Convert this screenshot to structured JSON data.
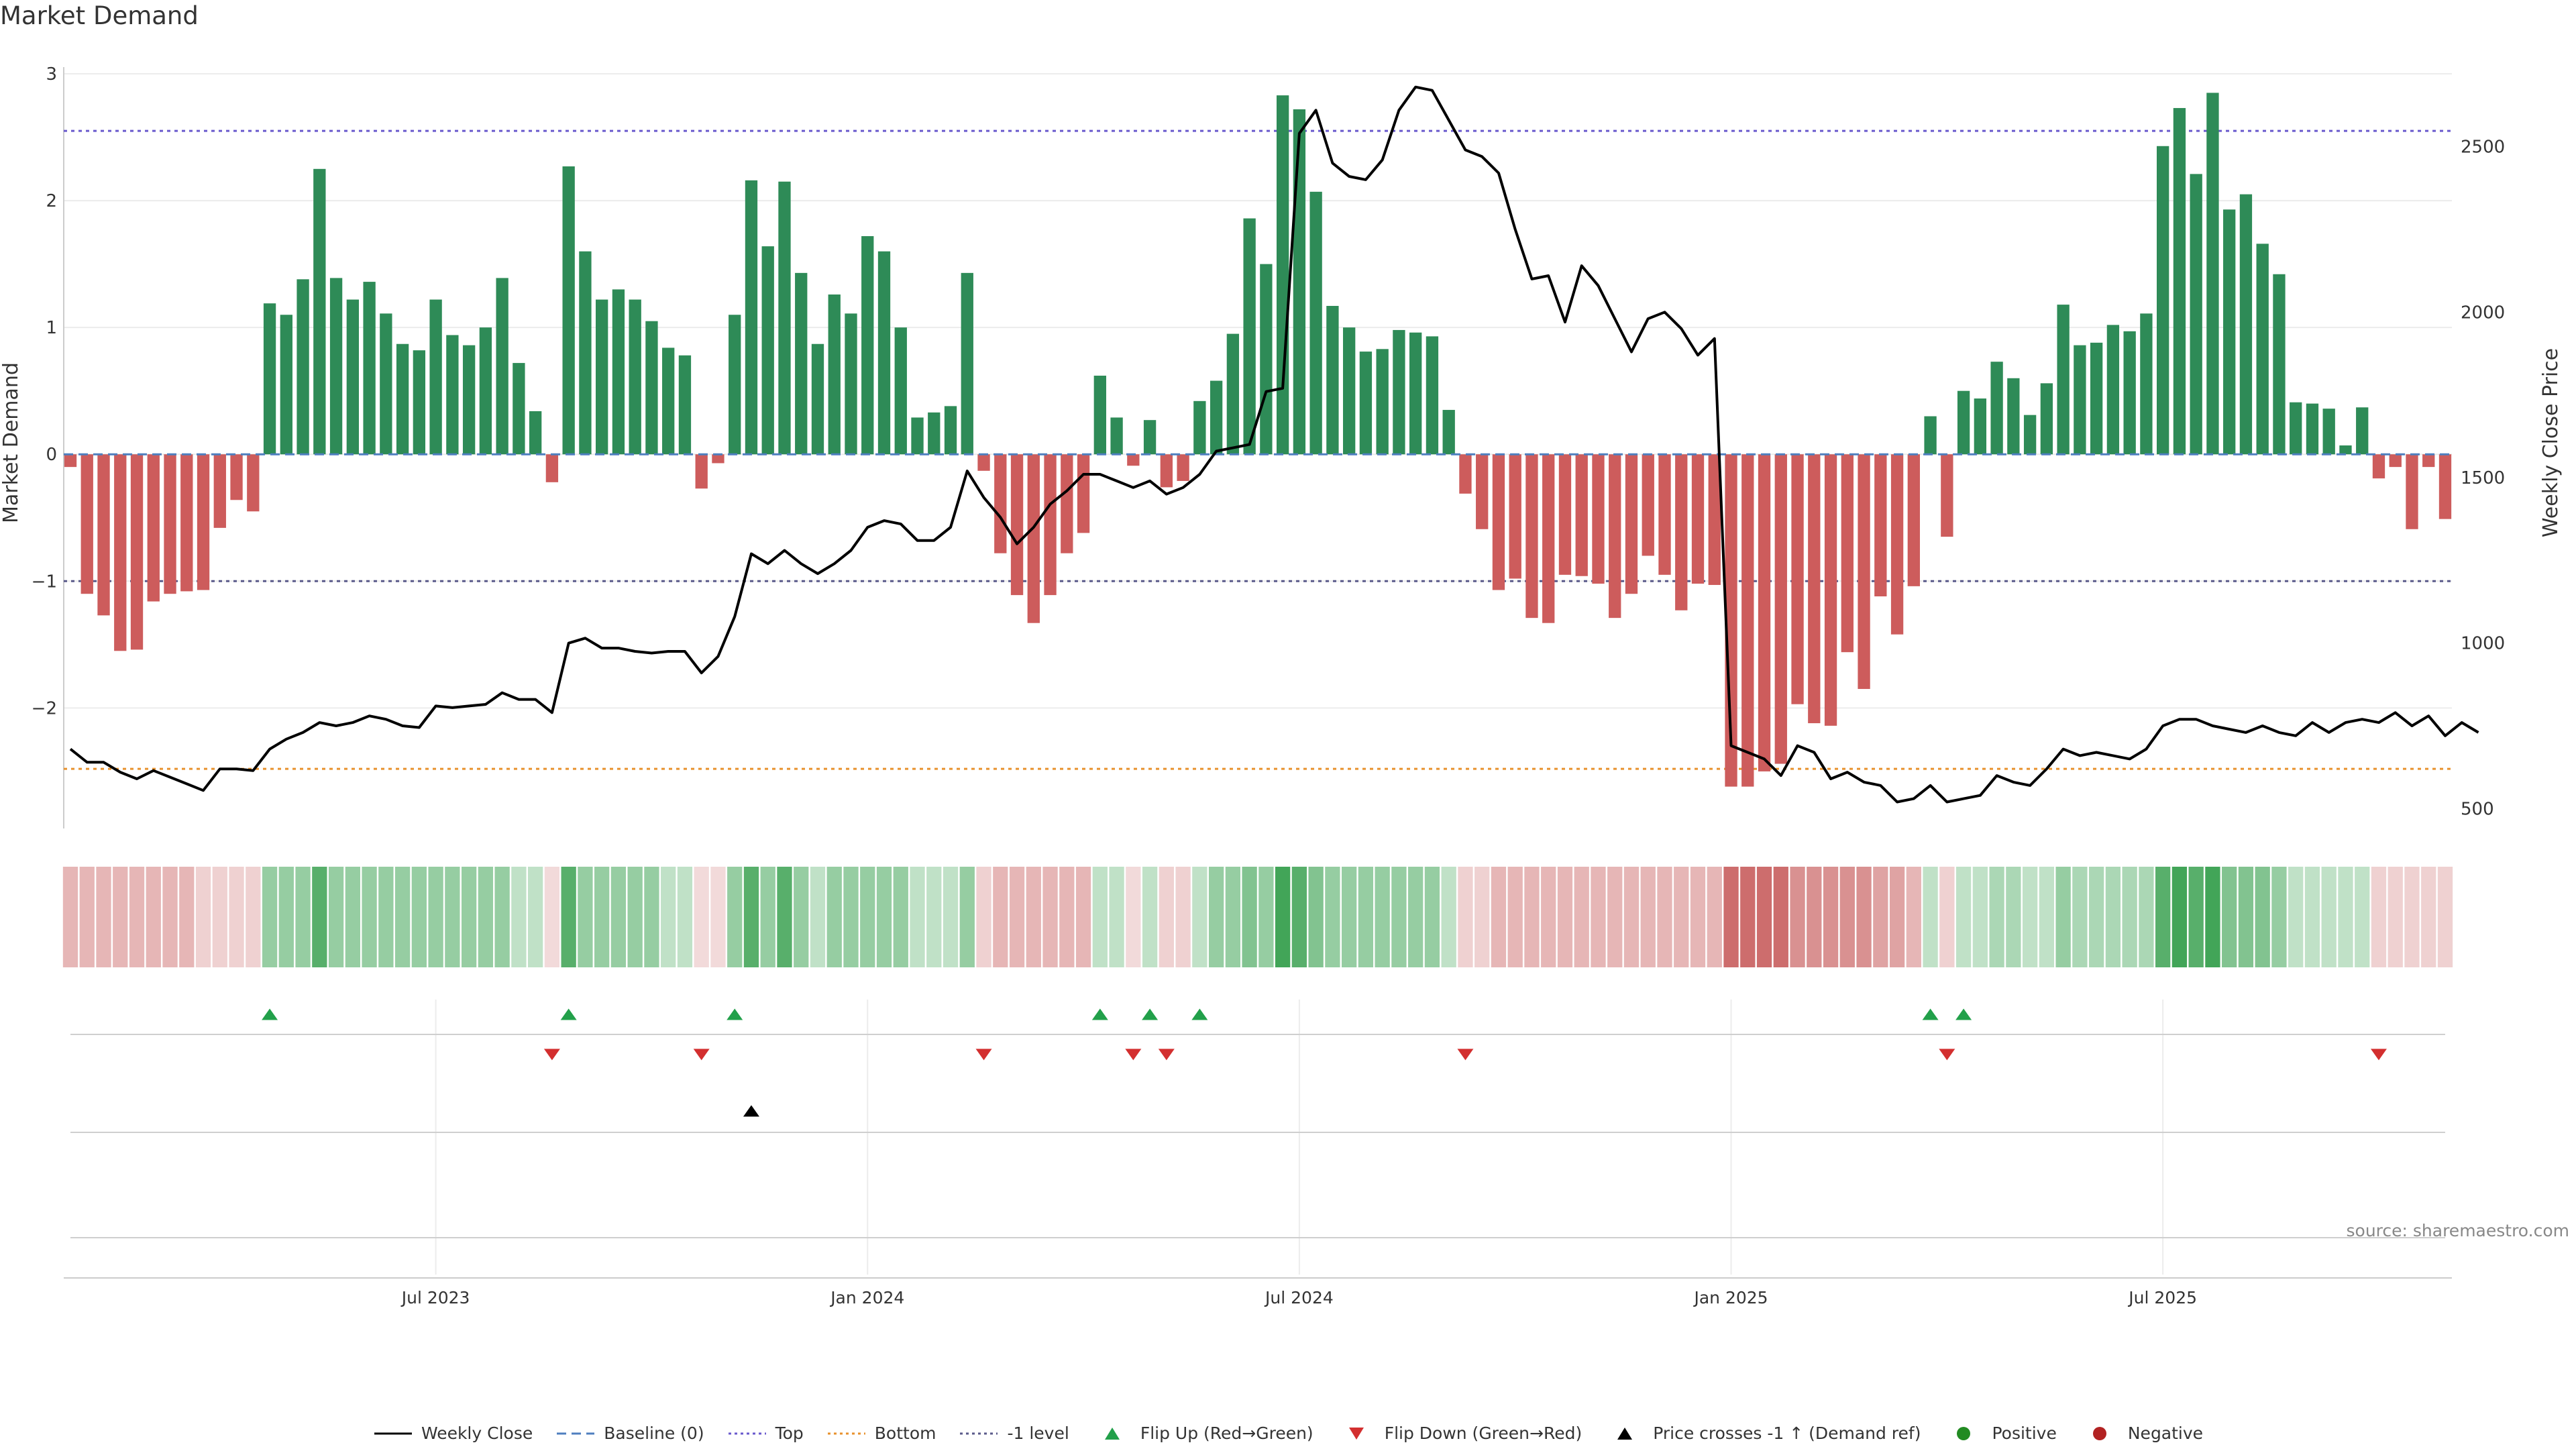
{
  "title": "Market Demand",
  "source": "source: sharemaestro.com",
  "colors": {
    "positive": "#2e8b57",
    "negative": "#cd5c5c",
    "price_line": "#000000",
    "baseline": "#4f7fbf",
    "top_line": "#6a5acd",
    "bottom_line": "#e8922e",
    "minus1_line": "#5a5a8a",
    "flip_up": "#22a04a",
    "flip_down": "#d32f2f",
    "cross": "#000000",
    "dot_positive": "#228b22",
    "dot_negative": "#b22222"
  },
  "legend": [
    {
      "label": "Weekly Close",
      "icon": "line-solid",
      "color": "#000000"
    },
    {
      "label": "Baseline (0)",
      "icon": "line-dashed",
      "color": "#4f7fbf"
    },
    {
      "label": "Top",
      "icon": "line-dotted",
      "color": "#6a5acd"
    },
    {
      "label": "Bottom",
      "icon": "line-dotted",
      "color": "#e8922e"
    },
    {
      "label": "-1 level",
      "icon": "line-dotted",
      "color": "#5a5a8a"
    },
    {
      "label": "Flip Up (Red→Green)",
      "icon": "triangle-up",
      "color": "#22a04a"
    },
    {
      "label": "Flip Down (Green→Red)",
      "icon": "triangle-down",
      "color": "#d32f2f"
    },
    {
      "label": "Price crosses -1 ↑ (Demand ref)",
      "icon": "triangle-up",
      "color": "#000000"
    },
    {
      "label": "Positive",
      "icon": "dot",
      "color": "#228b22"
    },
    {
      "label": "Negative",
      "icon": "dot",
      "color": "#b22222"
    }
  ],
  "chart_data": {
    "type": "bar",
    "title": "Market Demand",
    "ylabel_left": "Market Demand",
    "ylabel_right": "Weekly Close Price",
    "ylim_left": [
      -2.95,
      3.0
    ],
    "ylim_right": [
      440,
      2720
    ],
    "yticks_left": [
      -2,
      -1,
      0,
      1,
      2,
      3
    ],
    "yticks_left_labels": [
      "−2",
      "−1",
      "0",
      "1",
      "2",
      "3"
    ],
    "yticks_right": [
      500,
      1000,
      1500,
      2000,
      2500
    ],
    "yticks_right_labels": [
      "500",
      "1000",
      "1500",
      "2000",
      "2500"
    ],
    "x_tick_labels": [
      "Jul 2023",
      "Jan 2024",
      "Jul 2024",
      "Jan 2025",
      "Jul 2025"
    ],
    "x_tick_positions": [
      22,
      48,
      74,
      100,
      126
    ],
    "reference_lines": {
      "baseline": 0,
      "top": 2.55,
      "bottom": -2.48,
      "minus_one": -1
    },
    "demand": [
      -0.1,
      -1.1,
      -1.27,
      -1.55,
      -1.54,
      -1.16,
      -1.1,
      -1.08,
      -1.07,
      -0.58,
      -0.36,
      -0.45,
      1.19,
      1.1,
      1.38,
      2.25,
      1.39,
      1.22,
      1.36,
      1.11,
      0.87,
      0.82,
      1.22,
      0.94,
      0.86,
      1.0,
      1.39,
      0.72,
      0.34,
      -0.22,
      2.27,
      1.6,
      1.22,
      1.3,
      1.22,
      1.05,
      0.84,
      0.78,
      -0.27,
      -0.07,
      1.1,
      2.16,
      1.64,
      2.15,
      1.43,
      0.87,
      1.26,
      1.11,
      1.72,
      1.6,
      1.0,
      0.29,
      0.33,
      0.38,
      1.43,
      -0.13,
      -0.78,
      -1.11,
      -1.33,
      -1.11,
      -0.78,
      -0.62,
      0.62,
      0.29,
      -0.09,
      0.27,
      -0.26,
      -0.21,
      0.42,
      0.58,
      0.95,
      1.86,
      1.5,
      2.83,
      2.72,
      2.07,
      1.17,
      1.0,
      0.81,
      0.83,
      0.98,
      0.96,
      0.93,
      0.35,
      -0.31,
      -0.59,
      -1.07,
      -0.98,
      -1.29,
      -1.33,
      -0.95,
      -0.96,
      -1.02,
      -1.29,
      -1.1,
      -0.8,
      -0.95,
      -1.23,
      -1.02,
      -1.03,
      -2.62,
      -2.62,
      -2.5,
      -2.44,
      -1.97,
      -2.12,
      -2.14,
      -1.56,
      -1.85,
      -1.12,
      -1.42,
      -1.04,
      0.3,
      -0.65,
      0.5,
      0.44,
      0.73,
      0.6,
      0.31,
      0.56,
      1.18,
      0.86,
      0.88,
      1.02,
      0.97,
      1.11,
      2.43,
      2.73,
      2.21,
      2.85,
      1.93,
      2.05,
      1.66,
      1.42,
      0.41,
      0.4,
      0.36,
      0.07,
      0.37,
      -0.19,
      -0.1,
      -0.59,
      -0.1,
      -0.51
    ],
    "weekly_close": [
      680,
      640,
      640,
      610,
      590,
      615,
      595,
      575,
      555,
      620,
      620,
      615,
      680,
      710,
      730,
      760,
      750,
      760,
      780,
      770,
      750,
      745,
      810,
      805,
      810,
      815,
      850,
      830,
      830,
      790,
      1000,
      1015,
      985,
      985,
      975,
      970,
      975,
      975,
      910,
      960,
      1080,
      1270,
      1240,
      1280,
      1240,
      1210,
      1240,
      1280,
      1350,
      1370,
      1360,
      1310,
      1310,
      1350,
      1520,
      1440,
      1380,
      1300,
      1350,
      1420,
      1460,
      1510,
      1510,
      1490,
      1470,
      1490,
      1450,
      1470,
      1510,
      1580,
      1590,
      1600,
      1760,
      1770,
      2540,
      2610,
      2450,
      2410,
      2400,
      2460,
      2610,
      2680,
      2670,
      2580,
      2490,
      2470,
      2420,
      2250,
      2100,
      2110,
      1970,
      2140,
      2080,
      1980,
      1880,
      1980,
      2000,
      1950,
      1870,
      1920,
      690,
      670,
      650,
      600,
      690,
      670,
      590,
      610,
      580,
      570,
      520,
      530,
      570,
      520,
      530,
      540,
      600,
      580,
      570,
      620,
      680,
      660,
      670,
      660,
      650,
      680,
      750,
      770,
      770,
      750,
      740,
      730,
      750,
      730,
      720,
      760,
      730,
      760,
      770,
      760,
      790,
      750,
      780,
      720,
      760,
      730
    ],
    "shade_levels": [
      -0.4,
      -0.4,
      -0.4,
      -0.4,
      -0.4,
      -0.4,
      -0.4,
      -0.4,
      -0.25,
      -0.25,
      -0.25,
      -0.25,
      0.5,
      0.5,
      0.5,
      0.8,
      0.5,
      0.5,
      0.5,
      0.5,
      0.5,
      0.5,
      0.5,
      0.5,
      0.5,
      0.5,
      0.5,
      0.3,
      0.3,
      -0.2,
      0.8,
      0.5,
      0.5,
      0.5,
      0.5,
      0.5,
      0.3,
      0.3,
      -0.2,
      -0.2,
      0.5,
      0.8,
      0.5,
      0.8,
      0.5,
      0.3,
      0.5,
      0.5,
      0.5,
      0.5,
      0.5,
      0.3,
      0.3,
      0.3,
      0.5,
      -0.25,
      -0.4,
      -0.4,
      -0.4,
      -0.4,
      -0.4,
      -0.4,
      0.3,
      0.3,
      -0.2,
      0.3,
      -0.25,
      -0.25,
      0.3,
      0.5,
      0.5,
      0.6,
      0.5,
      0.9,
      0.8,
      0.6,
      0.5,
      0.5,
      0.5,
      0.5,
      0.5,
      0.5,
      0.5,
      0.3,
      -0.25,
      -0.25,
      -0.4,
      -0.4,
      -0.4,
      -0.4,
      -0.4,
      -0.4,
      -0.4,
      -0.4,
      -0.4,
      -0.4,
      -0.4,
      -0.4,
      -0.4,
      -0.4,
      -0.8,
      -0.8,
      -0.8,
      -0.8,
      -0.6,
      -0.6,
      -0.6,
      -0.6,
      -0.6,
      -0.5,
      -0.5,
      -0.4,
      0.3,
      -0.25,
      0.3,
      0.3,
      0.4,
      0.4,
      0.3,
      0.3,
      0.5,
      0.4,
      0.4,
      0.4,
      0.4,
      0.4,
      0.8,
      0.9,
      0.8,
      0.9,
      0.6,
      0.6,
      0.6,
      0.5,
      0.3,
      0.3,
      0.3,
      0.3,
      0.3,
      -0.25,
      -0.25,
      -0.25,
      -0.25,
      -0.25
    ],
    "flip_up_weeks": [
      12,
      30,
      40,
      62,
      65,
      68,
      112,
      114
    ],
    "flip_down_weeks": [
      29,
      38,
      55,
      64,
      66,
      84,
      113,
      139
    ],
    "price_cross_weeks": [
      41
    ]
  }
}
